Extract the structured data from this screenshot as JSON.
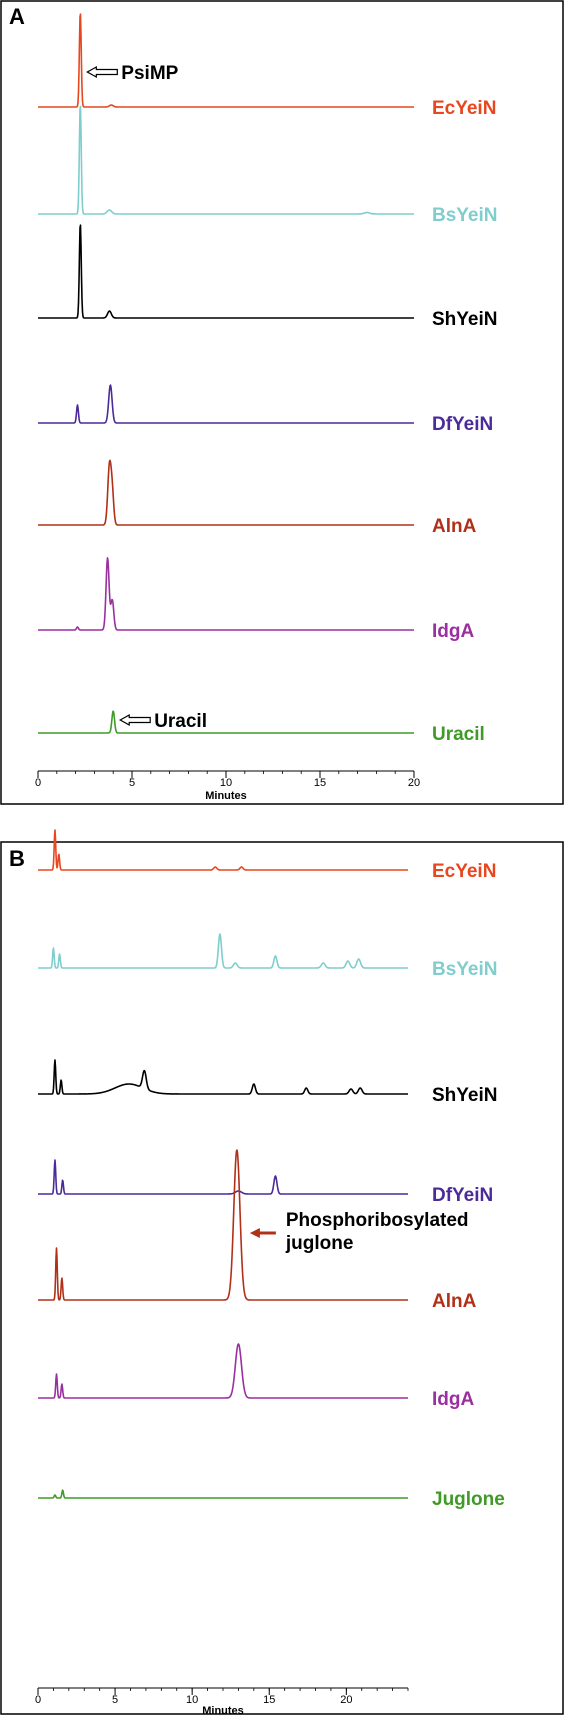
{
  "chart_data": [
    {
      "type": "line",
      "panel_label": "A",
      "xlabel": "Minutes",
      "xlim": [
        0,
        20
      ],
      "xticks": [
        0,
        5,
        10,
        15,
        20
      ],
      "series": [
        {
          "name": "EcYeiN",
          "color": "#e8461f",
          "peaks": [
            {
              "x": 2.25,
              "h": 95,
              "w": 0.05
            },
            {
              "x": 3.9,
              "h": 2,
              "w": 0.1
            }
          ],
          "annotation": {
            "text": "PsiMP",
            "x": 2.25,
            "style": "hollow"
          }
        },
        {
          "name": "BsYeiN",
          "color": "#7fcdcd",
          "peaks": [
            {
              "x": 2.25,
              "h": 110,
              "w": 0.05
            },
            {
              "x": 3.8,
              "h": 4,
              "w": 0.12
            },
            {
              "x": 17.5,
              "h": 1.5,
              "w": 0.15
            }
          ]
        },
        {
          "name": "ShYeiN",
          "color": "#000000",
          "peaks": [
            {
              "x": 2.25,
              "h": 95,
              "w": 0.05
            },
            {
              "x": 3.8,
              "h": 7,
              "w": 0.1
            }
          ]
        },
        {
          "name": "DfYeiN",
          "color": "#4b2a9a",
          "peaks": [
            {
              "x": 2.1,
              "h": 18,
              "w": 0.05
            },
            {
              "x": 3.85,
              "h": 38,
              "w": 0.09
            }
          ]
        },
        {
          "name": "AlnA",
          "color": "#b03018",
          "peaks": [
            {
              "x": 3.8,
              "h": 58,
              "w": 0.09
            },
            {
              "x": 3.95,
              "h": 30,
              "w": 0.08
            }
          ]
        },
        {
          "name": "IdgA",
          "color": "#9a2fa0",
          "peaks": [
            {
              "x": 3.7,
              "h": 72,
              "w": 0.08
            },
            {
              "x": 3.95,
              "h": 30,
              "w": 0.08
            },
            {
              "x": 2.1,
              "h": 3,
              "w": 0.05
            }
          ]
        },
        {
          "name": "Uracil",
          "color": "#3f9a28",
          "peaks": [
            {
              "x": 4.0,
              "h": 22,
              "w": 0.07
            }
          ],
          "annotation": {
            "text": "Uracil",
            "x": 4.0,
            "style": "hollow"
          }
        }
      ]
    },
    {
      "type": "line",
      "panel_label": "B",
      "xlabel": "Minutes",
      "xlim": [
        0,
        24
      ],
      "xticks": [
        0,
        5,
        10,
        15,
        20
      ],
      "series": [
        {
          "name": "EcYeiN",
          "color": "#e8461f",
          "peaks": [
            {
              "x": 1.1,
              "h": 40,
              "w": 0.05
            },
            {
              "x": 1.35,
              "h": 16,
              "w": 0.05
            },
            {
              "x": 11.5,
              "h": 3,
              "w": 0.1
            },
            {
              "x": 13.2,
              "h": 3,
              "w": 0.1
            }
          ]
        },
        {
          "name": "BsYeiN",
          "color": "#7fcdcd",
          "peaks": [
            {
              "x": 1.0,
              "h": 20,
              "w": 0.05
            },
            {
              "x": 1.4,
              "h": 14,
              "w": 0.05
            },
            {
              "x": 11.8,
              "h": 34,
              "w": 0.1
            },
            {
              "x": 12.8,
              "h": 5,
              "w": 0.12
            },
            {
              "x": 15.4,
              "h": 12,
              "w": 0.1
            },
            {
              "x": 18.5,
              "h": 5,
              "w": 0.12
            },
            {
              "x": 20.1,
              "h": 7,
              "w": 0.12
            },
            {
              "x": 20.8,
              "h": 9,
              "w": 0.12
            }
          ]
        },
        {
          "name": "ShYeiN",
          "color": "#000000",
          "peaks": [
            {
              "x": 1.1,
              "h": 34,
              "w": 0.05
            },
            {
              "x": 1.5,
              "h": 14,
              "w": 0.05
            },
            {
              "x": 5.9,
              "h": 10,
              "w": 0.9
            },
            {
              "x": 6.9,
              "h": 18,
              "w": 0.12
            },
            {
              "x": 14.0,
              "h": 10,
              "w": 0.1
            },
            {
              "x": 17.4,
              "h": 6,
              "w": 0.1
            },
            {
              "x": 20.3,
              "h": 5,
              "w": 0.12
            },
            {
              "x": 20.9,
              "h": 6,
              "w": 0.12
            }
          ]
        },
        {
          "name": "DfYeiN",
          "color": "#4b2a9a",
          "peaks": [
            {
              "x": 1.1,
              "h": 34,
              "w": 0.05
            },
            {
              "x": 1.6,
              "h": 14,
              "w": 0.05
            },
            {
              "x": 13.0,
              "h": 3,
              "w": 0.2
            },
            {
              "x": 15.4,
              "h": 18,
              "w": 0.1
            }
          ]
        },
        {
          "name": "AlnA",
          "color": "#b03018",
          "peaks": [
            {
              "x": 1.2,
              "h": 52,
              "w": 0.05
            },
            {
              "x": 1.55,
              "h": 22,
              "w": 0.05
            },
            {
              "x": 12.9,
              "h": 150,
              "w": 0.2
            }
          ],
          "annotation": {
            "text_lines": [
              "Phosphoribosylated",
              "juglone"
            ],
            "x": 12.9,
            "style": "solid"
          }
        },
        {
          "name": "IdgA",
          "color": "#9a2fa0",
          "peaks": [
            {
              "x": 1.2,
              "h": 24,
              "w": 0.05
            },
            {
              "x": 1.55,
              "h": 14,
              "w": 0.05
            },
            {
              "x": 13.0,
              "h": 54,
              "w": 0.2
            }
          ]
        },
        {
          "name": "Juglone",
          "color": "#3f9a28",
          "peaks": [
            {
              "x": 1.1,
              "h": 3,
              "w": 0.05
            },
            {
              "x": 1.6,
              "h": 8,
              "w": 0.05
            }
          ]
        }
      ]
    }
  ]
}
